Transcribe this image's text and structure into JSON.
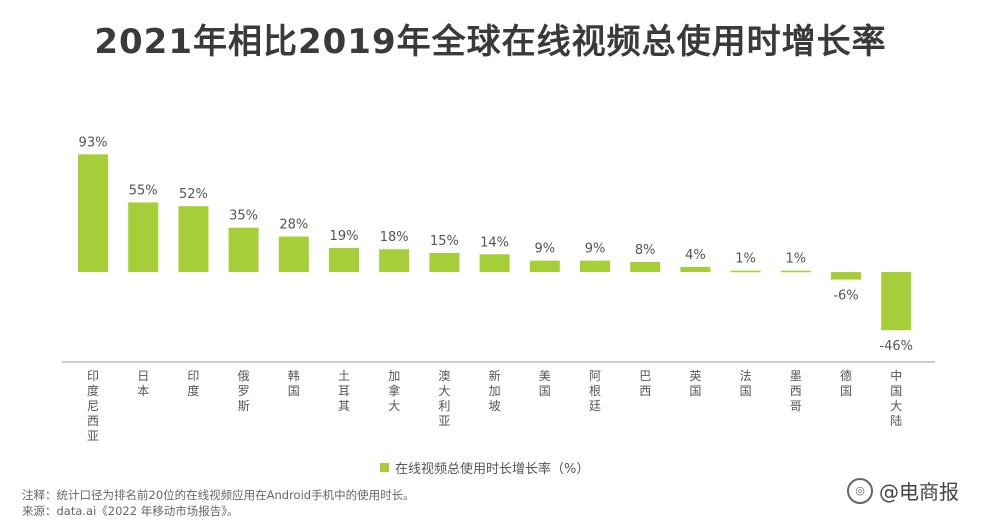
{
  "title": "2021年相比2019年全球在线视频总使用时增长率",
  "legend_label": "在线视频总使用时长增长率（%）",
  "note": "注释：统计口径为排名前20位的在线视频应用在Android手机中的使用时长。",
  "source": "来源：data.ai《2022 年移动市场报告》。",
  "watermark": "@电商报",
  "colors": {
    "bar": "#a6ce39",
    "axis": "#999999",
    "text": "#555555"
  },
  "chart_data": {
    "type": "bar",
    "categories": [
      "印度尼西亚",
      "日本",
      "印度",
      "俄罗斯",
      "韩国",
      "土耳其",
      "加拿大",
      "澳大利亚",
      "新加坡",
      "美国",
      "阿根廷",
      "巴西",
      "英国",
      "法国",
      "墨西哥",
      "德国",
      "中国大陆"
    ],
    "series": [
      {
        "name": "在线视频总使用时长增长率（%）",
        "values": [
          93,
          55,
          52,
          35,
          28,
          19,
          18,
          15,
          14,
          9,
          9,
          8,
          4,
          1,
          1,
          -6,
          -46
        ]
      }
    ],
    "value_labels": [
      "93%",
      "55%",
      "52%",
      "35%",
      "28%",
      "19%",
      "18%",
      "15%",
      "14%",
      "9%",
      "9%",
      "8%",
      "4%",
      "1%",
      "1%",
      "-6%",
      "-46%"
    ],
    "ylim": [
      -46,
      93
    ],
    "grid": false,
    "legend": "bottom-center",
    "xlabel": "",
    "ylabel": ""
  }
}
